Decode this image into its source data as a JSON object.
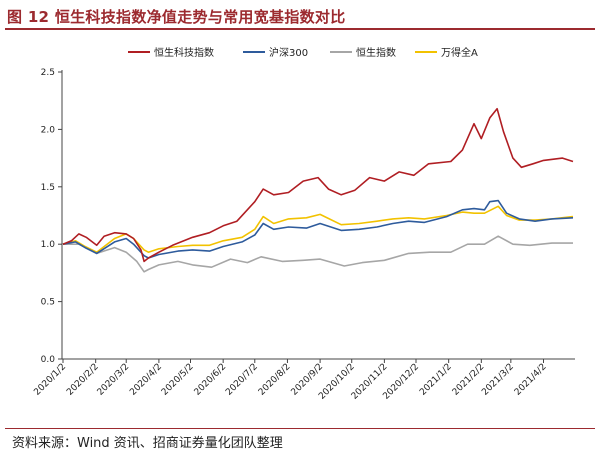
{
  "figure": {
    "title": "图 12 恒生科技指数净值走势与常用宽基指数对比",
    "source": "资料来源：Wind 资讯、招商证券量化团队整理"
  },
  "colors": {
    "accent": "#9c2a2f",
    "hstech": "#b01e23",
    "hs300": "#2e5b9c",
    "hsi": "#a6a6a6",
    "windA": "#f2c200"
  },
  "chart_data": {
    "type": "line",
    "title": "",
    "xlabel": "",
    "ylabel": "",
    "ylim": [
      0.0,
      2.5
    ],
    "yticks": [
      "0.0",
      "0.5",
      "1.0",
      "1.5",
      "2.0",
      "2.5"
    ],
    "xticks": [
      "2020/1/2",
      "2020/2/2",
      "2020/3/2",
      "2020/4/2",
      "2020/5/2",
      "2020/6/2",
      "2020/7/2",
      "2020/8/2",
      "2020/9/2",
      "2020/10/2",
      "2020/11/2",
      "2020/12/2",
      "2021/1/2",
      "2021/2/2",
      "2021/3/2",
      "2021/4/2"
    ],
    "grid": false,
    "legend_position": "top",
    "series": [
      {
        "name": "恒生科技指数",
        "color_key": "hstech",
        "points": [
          [
            "2020/1/2",
            1.0
          ],
          [
            "2020/1/10",
            1.03
          ],
          [
            "2020/1/17",
            1.09
          ],
          [
            "2020/1/24",
            1.06
          ],
          [
            "2020/2/3",
            0.99
          ],
          [
            "2020/2/10",
            1.07
          ],
          [
            "2020/2/20",
            1.1
          ],
          [
            "2020/3/2",
            1.09
          ],
          [
            "2020/3/9",
            1.05
          ],
          [
            "2020/3/16",
            0.95
          ],
          [
            "2020/3/19",
            0.85
          ],
          [
            "2020/3/23",
            0.88
          ],
          [
            "2020/4/2",
            0.93
          ],
          [
            "2020/4/15",
            0.99
          ],
          [
            "2020/5/4",
            1.06
          ],
          [
            "2020/5/20",
            1.1
          ],
          [
            "2020/6/2",
            1.16
          ],
          [
            "2020/6/15",
            1.2
          ],
          [
            "2020/7/2",
            1.37
          ],
          [
            "2020/7/10",
            1.48
          ],
          [
            "2020/7/20",
            1.43
          ],
          [
            "2020/8/3",
            1.45
          ],
          [
            "2020/8/17",
            1.55
          ],
          [
            "2020/8/31",
            1.58
          ],
          [
            "2020/9/10",
            1.48
          ],
          [
            "2020/9/22",
            1.43
          ],
          [
            "2020/10/5",
            1.47
          ],
          [
            "2020/10/19",
            1.58
          ],
          [
            "2020/11/2",
            1.55
          ],
          [
            "2020/11/16",
            1.63
          ],
          [
            "2020/11/30",
            1.6
          ],
          [
            "2020/12/14",
            1.7
          ],
          [
            "2021/1/4",
            1.72
          ],
          [
            "2021/1/15",
            1.82
          ],
          [
            "2021/1/26",
            2.05
          ],
          [
            "2021/2/2",
            1.92
          ],
          [
            "2021/2/10",
            2.1
          ],
          [
            "2021/2/17",
            2.18
          ],
          [
            "2021/2/23",
            1.98
          ],
          [
            "2021/3/4",
            1.75
          ],
          [
            "2021/3/12",
            1.67
          ],
          [
            "2021/3/23",
            1.7
          ],
          [
            "2021/4/2",
            1.73
          ],
          [
            "2021/4/20",
            1.75
          ],
          [
            "2021/4/30",
            1.72
          ]
        ]
      },
      {
        "name": "沪深300",
        "color_key": "hs300",
        "points": [
          [
            "2020/1/2",
            1.0
          ],
          [
            "2020/1/14",
            1.02
          ],
          [
            "2020/1/23",
            0.97
          ],
          [
            "2020/2/3",
            0.92
          ],
          [
            "2020/2/20",
            1.02
          ],
          [
            "2020/3/2",
            1.05
          ],
          [
            "2020/3/9",
            1.0
          ],
          [
            "2020/3/19",
            0.9
          ],
          [
            "2020/3/23",
            0.88
          ],
          [
            "2020/4/2",
            0.91
          ],
          [
            "2020/4/20",
            0.94
          ],
          [
            "2020/5/4",
            0.95
          ],
          [
            "2020/5/20",
            0.94
          ],
          [
            "2020/6/2",
            0.98
          ],
          [
            "2020/6/20",
            1.02
          ],
          [
            "2020/7/2",
            1.08
          ],
          [
            "2020/7/10",
            1.18
          ],
          [
            "2020/7/20",
            1.13
          ],
          [
            "2020/8/3",
            1.15
          ],
          [
            "2020/8/20",
            1.14
          ],
          [
            "2020/9/2",
            1.18
          ],
          [
            "2020/9/22",
            1.12
          ],
          [
            "2020/10/9",
            1.13
          ],
          [
            "2020/10/26",
            1.15
          ],
          [
            "2020/11/10",
            1.18
          ],
          [
            "2020/11/25",
            1.2
          ],
          [
            "2020/12/10",
            1.19
          ],
          [
            "2020/12/31",
            1.24
          ],
          [
            "2021/1/15",
            1.3
          ],
          [
            "2021/1/26",
            1.31
          ],
          [
            "2021/2/5",
            1.3
          ],
          [
            "2021/2/10",
            1.37
          ],
          [
            "2021/2/18",
            1.38
          ],
          [
            "2021/2/26",
            1.27
          ],
          [
            "2021/3/10",
            1.22
          ],
          [
            "2021/3/25",
            1.2
          ],
          [
            "2021/4/10",
            1.22
          ],
          [
            "2021/4/30",
            1.23
          ]
        ]
      },
      {
        "name": "恒生指数",
        "color_key": "hsi",
        "points": [
          [
            "2020/1/2",
            1.0
          ],
          [
            "2020/1/17",
            1.0
          ],
          [
            "2020/2/3",
            0.92
          ],
          [
            "2020/2/20",
            0.97
          ],
          [
            "2020/3/2",
            0.93
          ],
          [
            "2020/3/12",
            0.85
          ],
          [
            "2020/3/19",
            0.76
          ],
          [
            "2020/3/23",
            0.78
          ],
          [
            "2020/4/2",
            0.82
          ],
          [
            "2020/4/20",
            0.85
          ],
          [
            "2020/5/4",
            0.82
          ],
          [
            "2020/5/22",
            0.8
          ],
          [
            "2020/6/9",
            0.87
          ],
          [
            "2020/6/25",
            0.84
          ],
          [
            "2020/7/8",
            0.89
          ],
          [
            "2020/7/28",
            0.85
          ],
          [
            "2020/8/17",
            0.86
          ],
          [
            "2020/9/2",
            0.87
          ],
          [
            "2020/9/25",
            0.81
          ],
          [
            "2020/10/12",
            0.84
          ],
          [
            "2020/11/2",
            0.86
          ],
          [
            "2020/11/25",
            0.92
          ],
          [
            "2020/12/15",
            0.93
          ],
          [
            "2021/1/4",
            0.93
          ],
          [
            "2021/1/20",
            1.0
          ],
          [
            "2021/2/5",
            1.0
          ],
          [
            "2021/2/18",
            1.07
          ],
          [
            "2021/3/4",
            1.0
          ],
          [
            "2021/3/20",
            0.99
          ],
          [
            "2021/4/10",
            1.01
          ],
          [
            "2021/4/30",
            1.01
          ]
        ]
      },
      {
        "name": "万得全A",
        "color_key": "windA",
        "points": [
          [
            "2020/1/2",
            1.0
          ],
          [
            "2020/1/14",
            1.03
          ],
          [
            "2020/1/23",
            0.98
          ],
          [
            "2020/2/3",
            0.93
          ],
          [
            "2020/2/20",
            1.05
          ],
          [
            "2020/3/2",
            1.09
          ],
          [
            "2020/3/9",
            1.05
          ],
          [
            "2020/3/19",
            0.95
          ],
          [
            "2020/3/23",
            0.93
          ],
          [
            "2020/4/2",
            0.96
          ],
          [
            "2020/4/20",
            0.98
          ],
          [
            "2020/5/4",
            0.99
          ],
          [
            "2020/5/20",
            0.99
          ],
          [
            "2020/6/2",
            1.03
          ],
          [
            "2020/6/20",
            1.06
          ],
          [
            "2020/7/2",
            1.13
          ],
          [
            "2020/7/10",
            1.24
          ],
          [
            "2020/7/20",
            1.18
          ],
          [
            "2020/8/3",
            1.22
          ],
          [
            "2020/8/20",
            1.23
          ],
          [
            "2020/9/2",
            1.26
          ],
          [
            "2020/9/22",
            1.17
          ],
          [
            "2020/10/9",
            1.18
          ],
          [
            "2020/10/26",
            1.2
          ],
          [
            "2020/11/10",
            1.22
          ],
          [
            "2020/11/25",
            1.23
          ],
          [
            "2020/12/10",
            1.22
          ],
          [
            "2020/12/31",
            1.25
          ],
          [
            "2021/1/15",
            1.28
          ],
          [
            "2021/1/26",
            1.27
          ],
          [
            "2021/2/5",
            1.27
          ],
          [
            "2021/2/18",
            1.33
          ],
          [
            "2021/2/26",
            1.25
          ],
          [
            "2021/3/10",
            1.21
          ],
          [
            "2021/3/25",
            1.21
          ],
          [
            "2021/4/10",
            1.22
          ],
          [
            "2021/4/30",
            1.24
          ]
        ]
      }
    ]
  }
}
